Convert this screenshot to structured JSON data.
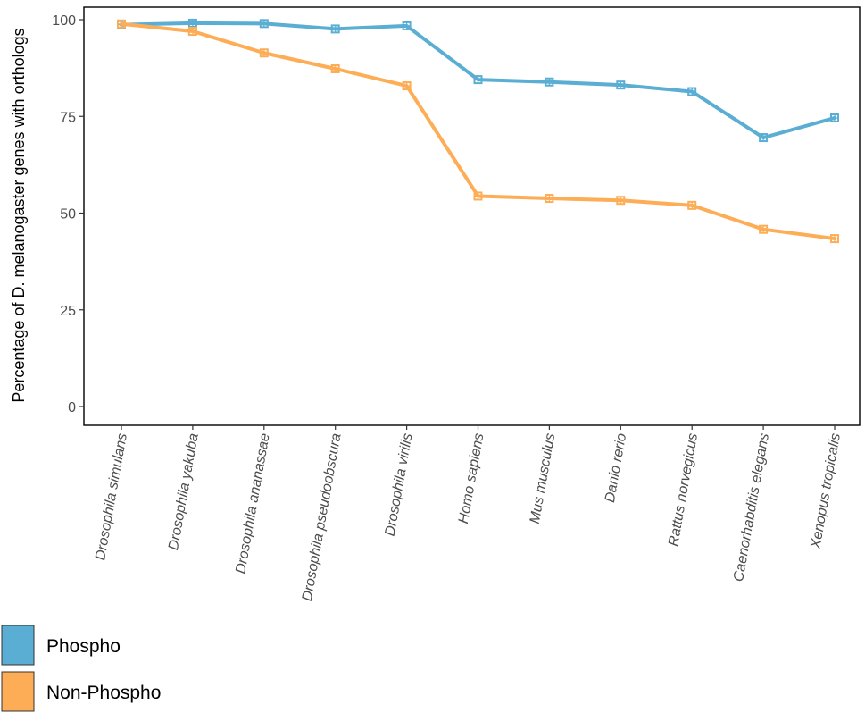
{
  "chart_data": {
    "type": "line",
    "title": "",
    "xlabel": "",
    "ylabel": "Percentage of D. melanogaster genes with orthologs",
    "ylim": [
      -5,
      102
    ],
    "yticks": [
      0,
      25,
      50,
      75,
      100
    ],
    "grid": false,
    "legend_position": "bottom-left",
    "categories": [
      "Drosophila simulans",
      "Drosophila yakuba",
      "Drosophila ananassae",
      "Drosophila pseudoobscura",
      "Drosophila virilis",
      "Homo sapiens",
      "Mus musculus",
      "Danio rerio",
      "Rattus norvegicus",
      "Caenorhabditis elegans",
      "Xenopus tropicalis"
    ],
    "series": [
      {
        "name": "Phospho",
        "color": "#5aaed3",
        "values": [
          98.7,
          99.1,
          99.0,
          97.6,
          98.4,
          84.5,
          83.9,
          83.1,
          81.4,
          69.5,
          74.6
        ]
      },
      {
        "name": "Non-Phospho",
        "color": "#fdad55",
        "values": [
          98.9,
          97.0,
          91.4,
          87.3,
          82.9,
          54.4,
          53.8,
          53.3,
          52.0,
          45.8,
          43.4
        ]
      }
    ]
  }
}
